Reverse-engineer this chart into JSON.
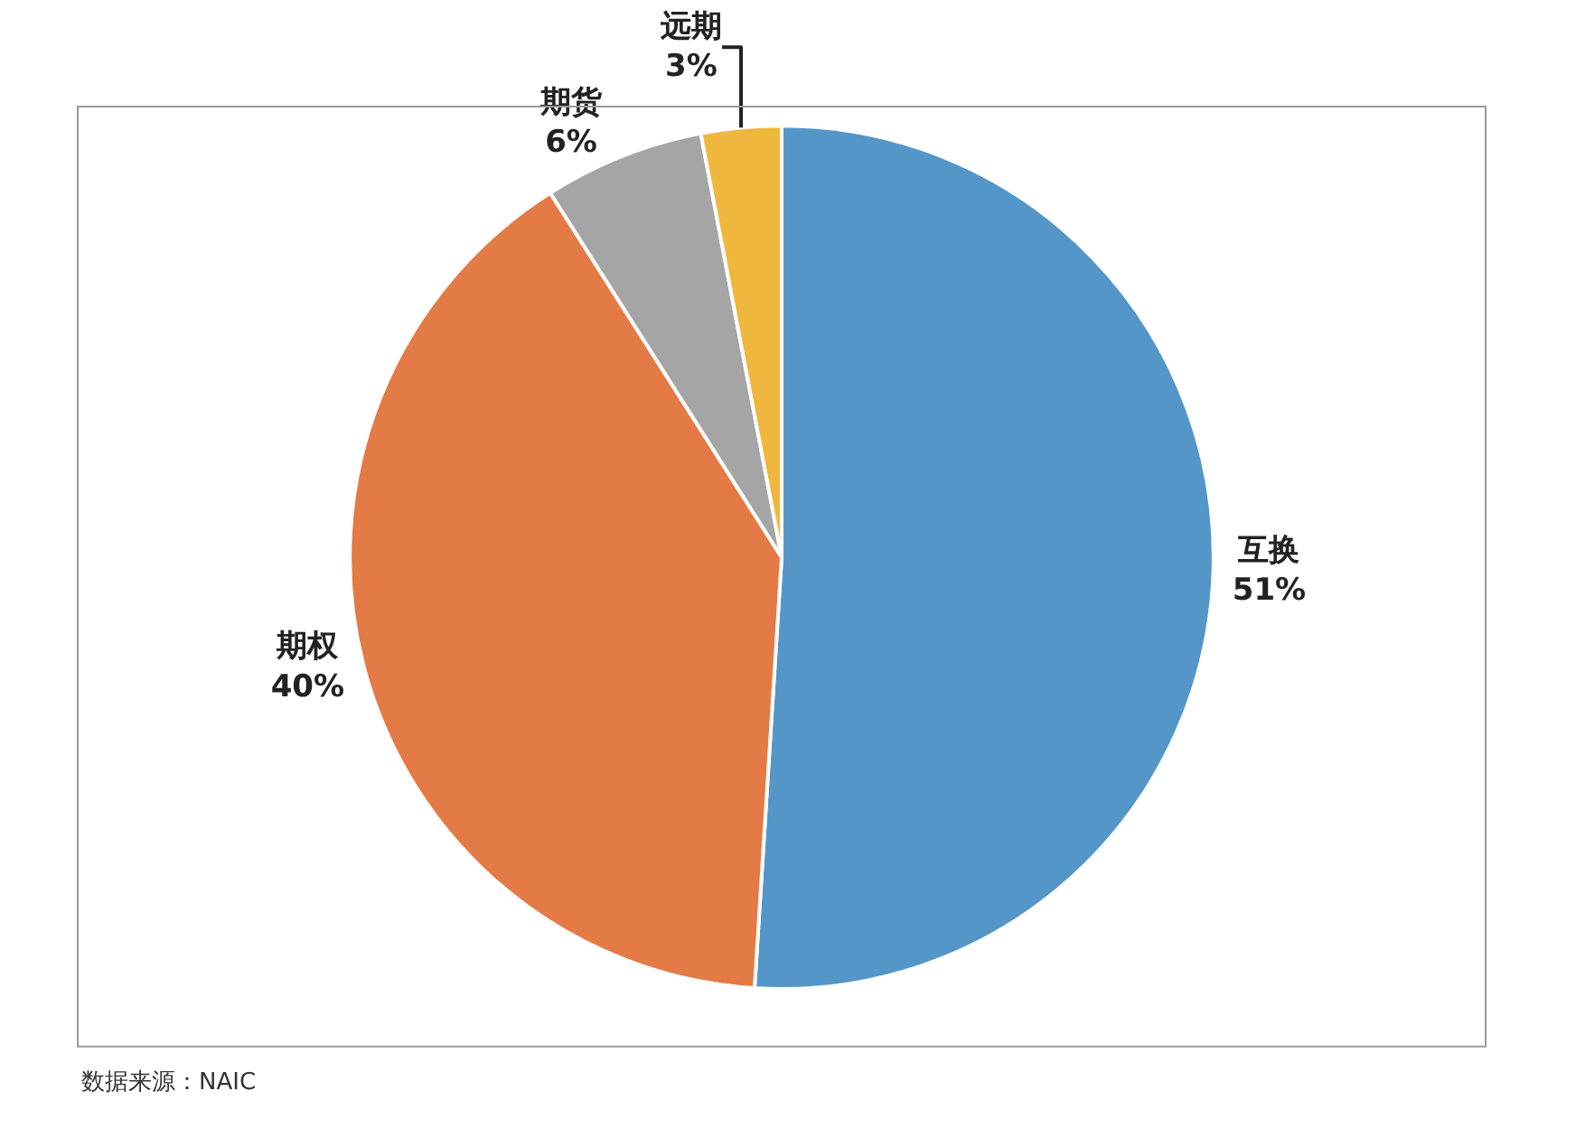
{
  "chart_data": {
    "type": "pie",
    "categories": [
      "互换",
      "期权",
      "期货",
      "远期"
    ],
    "values": [
      51,
      40,
      6,
      3
    ],
    "value_labels": [
      "51%",
      "40%",
      "6%",
      "3%"
    ],
    "colors": [
      "#5596c8",
      "#e47a45",
      "#a5a5a5",
      "#f0b73e"
    ],
    "legend": false,
    "annotations": [
      "数据来源：NAIC"
    ]
  }
}
